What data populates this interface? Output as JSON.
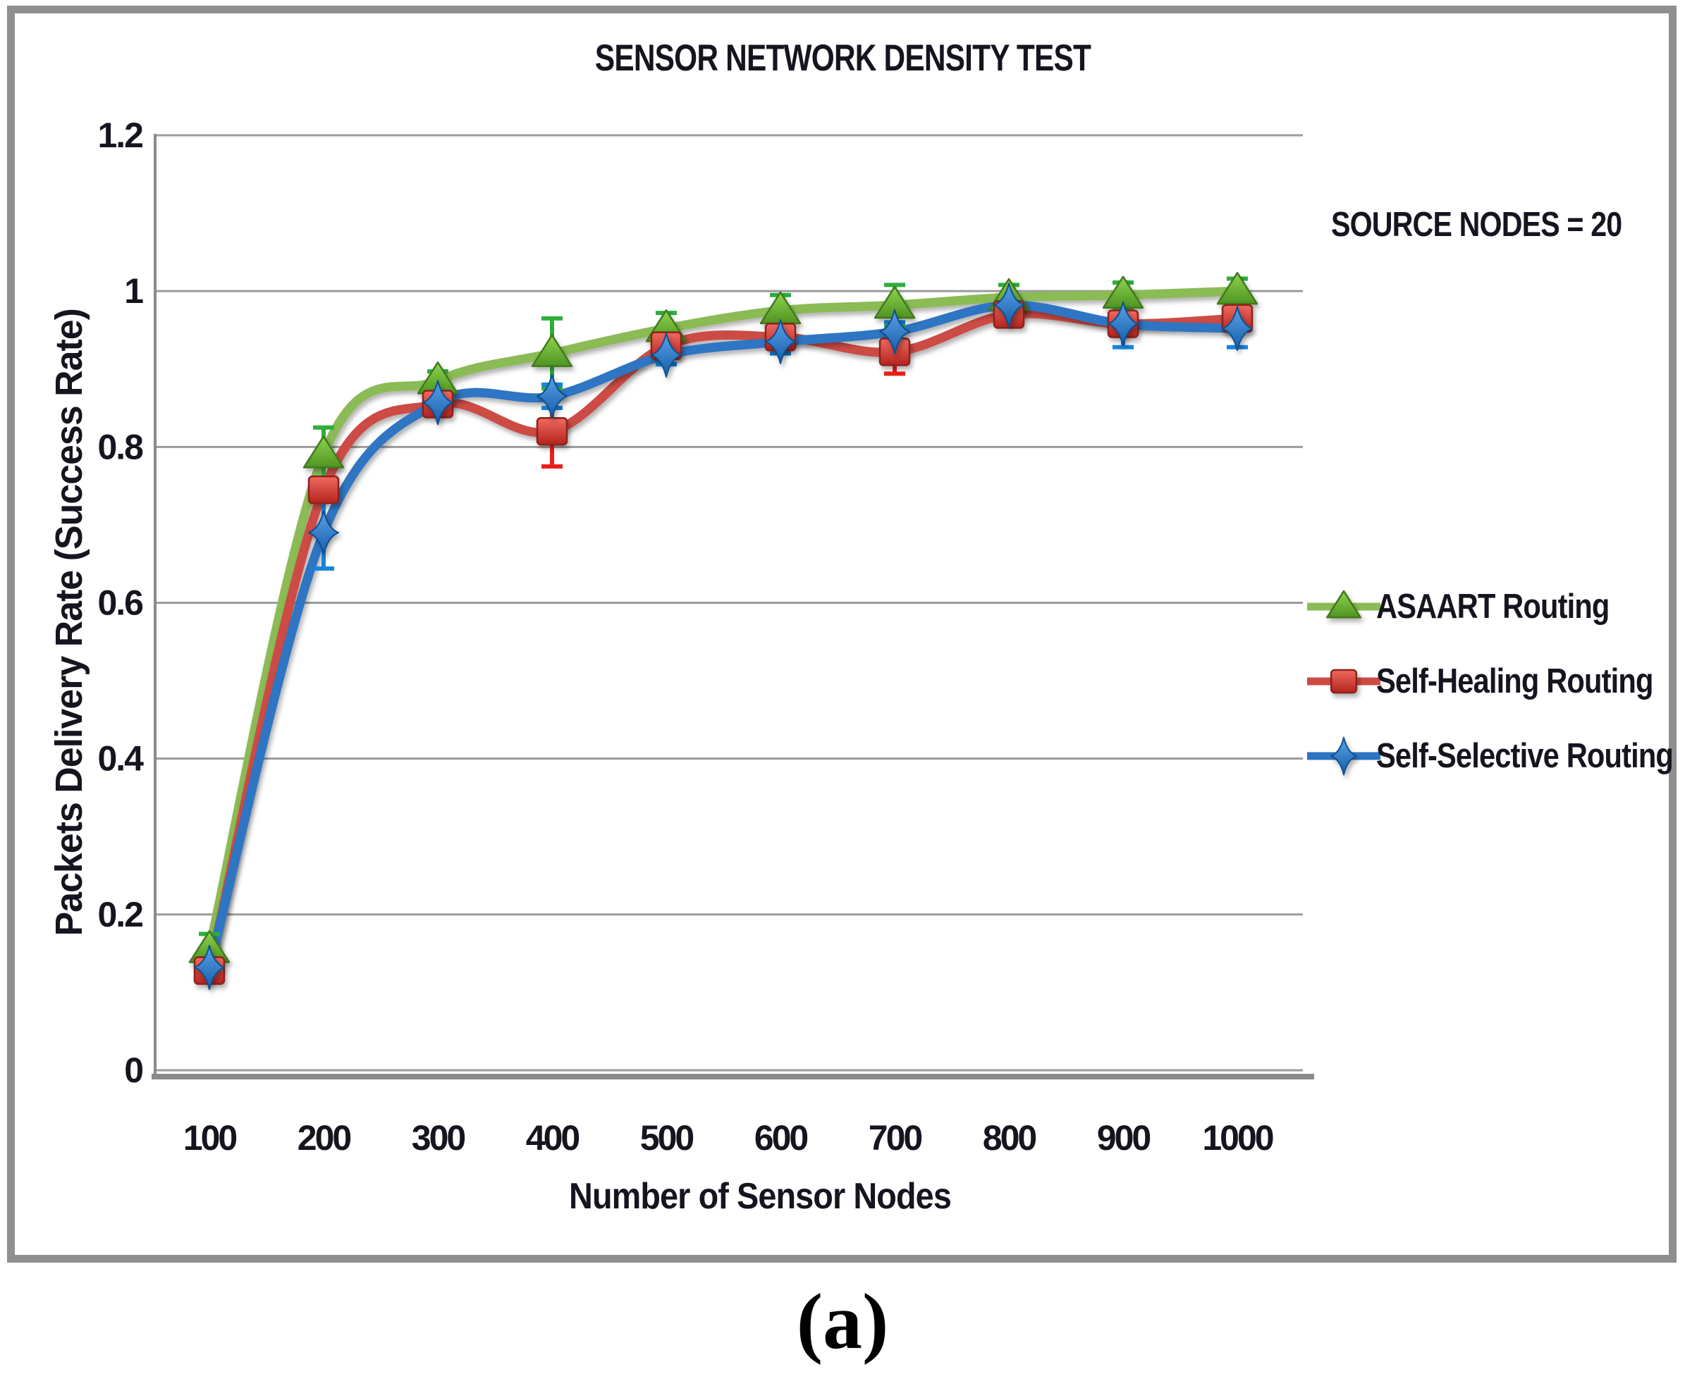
{
  "figure": {
    "caption": "(a)"
  },
  "chart_data": {
    "type": "line",
    "title": "SENSOR NETWORK DENSITY TEST",
    "xlabel": "Number of Sensor Nodes",
    "ylabel": "Packets Delivery Rate (Success Rate)",
    "annotation": "SOURCE NODES = 20",
    "legend_position": "right",
    "grid": "horizontal",
    "ylim": [
      0,
      1.2
    ],
    "categories": [
      100,
      200,
      300,
      400,
      500,
      600,
      700,
      800,
      900,
      1000
    ],
    "x_tick_labels": [
      "100",
      "200",
      "300",
      "400",
      "500",
      "600",
      "700",
      "800",
      "900",
      "1000"
    ],
    "y_ticks": [
      0,
      0.2,
      0.4,
      0.6,
      0.8,
      1,
      1.2
    ],
    "y_tick_labels": [
      "0",
      "0.2",
      "0.4",
      "0.6",
      "0.8",
      "1",
      "1.2"
    ],
    "axis_color": "#8a8a8a",
    "grid_color": "#9b9b9b",
    "text_color": "#15151f",
    "series": [
      {
        "name": "ASAART Routing",
        "marker": "triangle",
        "line_color": "#8bbb55",
        "marker_fill_light": "#8ed44e",
        "marker_fill_dark": "#4f9422",
        "marker_stroke": "#3f7a1d",
        "error_color": "#2fae3e",
        "values": [
          0.155,
          0.79,
          0.885,
          0.92,
          0.952,
          0.975,
          0.982,
          0.992,
          0.995,
          1.0
        ],
        "errors": [
          0.02,
          0.035,
          0.012,
          0.045,
          0.02,
          0.02,
          0.026,
          0.016,
          0.016,
          0.016
        ]
      },
      {
        "name": "Self-Healing Routing",
        "marker": "square",
        "line_color": "#cd4b45",
        "marker_fill_light": "#ef6a60",
        "marker_fill_dark": "#b5231e",
        "marker_stroke": "#8e201c",
        "error_color": "#ea1f1a",
        "values": [
          0.128,
          0.745,
          0.855,
          0.82,
          0.93,
          0.941,
          0.922,
          0.97,
          0.958,
          0.965
        ],
        "errors": [
          0.015,
          0.012,
          0.01,
          0.045,
          0.012,
          0.012,
          0.028,
          0.012,
          0.012,
          0.012
        ]
      },
      {
        "name": "Self-Selective Routing",
        "marker": "star",
        "line_color": "#2e74c3",
        "marker_fill_light": "#5aa2e8",
        "marker_fill_dark": "#155da8",
        "marker_stroke": "#11508f",
        "error_color": "#1585e0",
        "values": [
          0.132,
          0.69,
          0.857,
          0.865,
          0.918,
          0.935,
          0.948,
          0.982,
          0.958,
          0.952
        ],
        "errors": [
          0.015,
          0.046,
          0.01,
          0.015,
          0.012,
          0.015,
          0.012,
          0.012,
          0.03,
          0.024
        ]
      }
    ]
  }
}
